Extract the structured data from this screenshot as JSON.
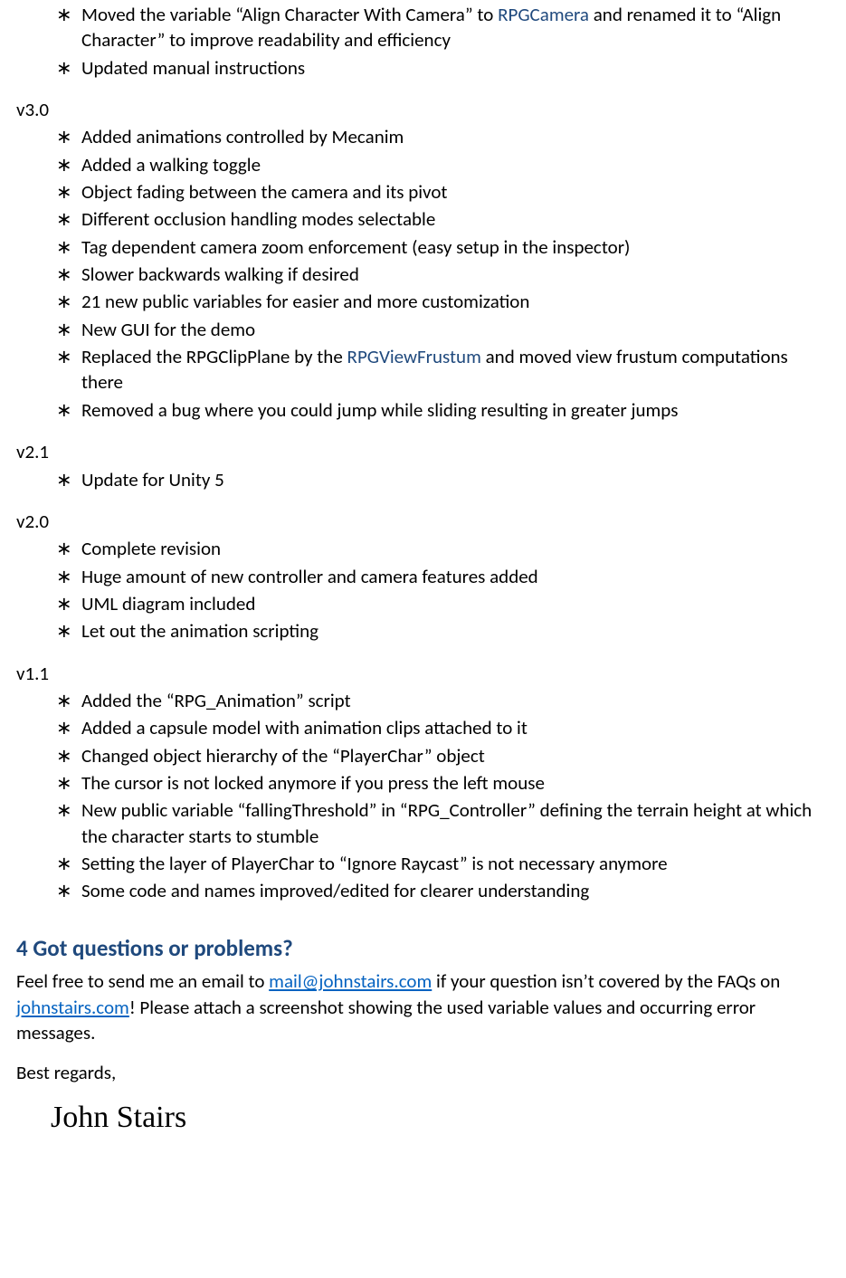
{
  "colors": {
    "body_text": "#000000",
    "accent": "#1f497d",
    "link": "#0563c1",
    "background": "#ffffff"
  },
  "typography": {
    "body_family": "Calibri",
    "body_size_pt": 16,
    "heading_size_pt": 19,
    "signature_family": "Segoe Script",
    "signature_size_pt": 26
  },
  "intro_bullets": [
    {
      "parts": [
        {
          "text": "Moved the variable “Align Character With Camera” to "
        },
        {
          "text": "RPGCamera",
          "color": "#1f497d"
        },
        {
          "text": " and renamed it to “Align Character” to improve readability and efficiency"
        }
      ]
    },
    {
      "parts": [
        {
          "text": "Updated manual instructions"
        }
      ]
    }
  ],
  "versions": [
    {
      "label": "v3.0",
      "items": [
        {
          "parts": [
            {
              "text": "Added animations controlled by Mecanim"
            }
          ]
        },
        {
          "parts": [
            {
              "text": "Added a walking toggle"
            }
          ]
        },
        {
          "parts": [
            {
              "text": "Object fading between the camera and its pivot"
            }
          ]
        },
        {
          "parts": [
            {
              "text": "Different occlusion handling modes selectable"
            }
          ]
        },
        {
          "parts": [
            {
              "text": "Tag dependent camera zoom enforcement (easy setup in the inspector)"
            }
          ]
        },
        {
          "parts": [
            {
              "text": "Slower backwards walking if desired"
            }
          ]
        },
        {
          "parts": [
            {
              "text": "21 new public variables for easier and more customization"
            }
          ]
        },
        {
          "parts": [
            {
              "text": "New GUI for the demo"
            }
          ]
        },
        {
          "parts": [
            {
              "text": "Replaced the RPGClipPlane by the "
            },
            {
              "text": "RPGViewFrustum",
              "color": "#1f497d"
            },
            {
              "text": " and moved view frustum computations there"
            }
          ]
        },
        {
          "parts": [
            {
              "text": "Removed a bug where you could jump while sliding resulting in greater jumps"
            }
          ]
        }
      ]
    },
    {
      "label": "v2.1",
      "items": [
        {
          "parts": [
            {
              "text": "Update for Unity 5"
            }
          ]
        }
      ]
    },
    {
      "label": "v2.0",
      "items": [
        {
          "parts": [
            {
              "text": "Complete revision"
            }
          ]
        },
        {
          "parts": [
            {
              "text": "Huge amount of new controller and camera features added"
            }
          ]
        },
        {
          "parts": [
            {
              "text": "UML diagram included"
            }
          ]
        },
        {
          "parts": [
            {
              "text": "Let out the animation scripting"
            }
          ]
        }
      ]
    },
    {
      "label": "v1.1",
      "items": [
        {
          "parts": [
            {
              "text": "Added the “RPG_Animation” script"
            }
          ]
        },
        {
          "parts": [
            {
              "text": "Added a capsule model with animation clips attached to it"
            }
          ]
        },
        {
          "parts": [
            {
              "text": "Changed object hierarchy of the “PlayerChar” object"
            }
          ]
        },
        {
          "parts": [
            {
              "text": "The cursor is not locked anymore if you press the left mouse"
            }
          ]
        },
        {
          "parts": [
            {
              "text": "New public variable “fallingThreshold” in “RPG_Controller” defining the terrain height at which the character starts to stumble"
            }
          ]
        },
        {
          "parts": [
            {
              "text": "Setting the layer of PlayerChar to “Ignore Raycast” is not necessary anymore"
            }
          ]
        },
        {
          "parts": [
            {
              "text": "Some code and names improved/edited for clearer understanding"
            }
          ]
        }
      ]
    }
  ],
  "section_heading": "4 Got questions or problems?",
  "contact_paragraph": {
    "pre": "Feel free to send me an email to ",
    "email": "mail@johnstairs.com",
    "mid": " if your question isn’t covered by the FAQs on ",
    "site": "johnstairs.com",
    "post": "! Please attach a screenshot showing the used variable values and occurring error messages."
  },
  "signoff": "Best regards,",
  "signature": "John Stairs"
}
